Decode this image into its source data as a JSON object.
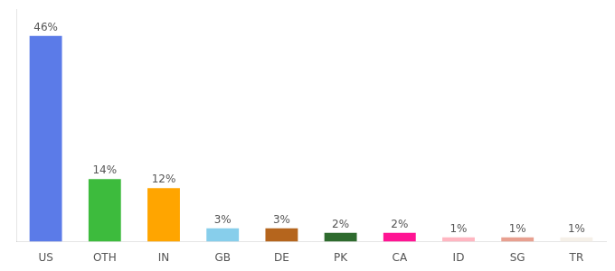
{
  "chart_data": {
    "type": "bar",
    "categories": [
      "US",
      "OTH",
      "IN",
      "GB",
      "DE",
      "PK",
      "CA",
      "ID",
      "SG",
      "TR"
    ],
    "values": [
      46,
      14,
      12,
      3,
      3,
      2,
      2,
      1,
      1,
      1
    ],
    "value_labels": [
      "46%",
      "14%",
      "12%",
      "3%",
      "3%",
      "2%",
      "2%",
      "1%",
      "1%",
      "1%"
    ],
    "colors": [
      "#5b7be8",
      "#3dbb3d",
      "#ffa500",
      "#87ceeb",
      "#b5651d",
      "#2e6b2e",
      "#ff1493",
      "#ffb6c1",
      "#e8a090",
      "#f5f0e8"
    ],
    "ylim": [
      0,
      52
    ],
    "data_labels": true,
    "tick_labels": "x",
    "grid": false
  }
}
